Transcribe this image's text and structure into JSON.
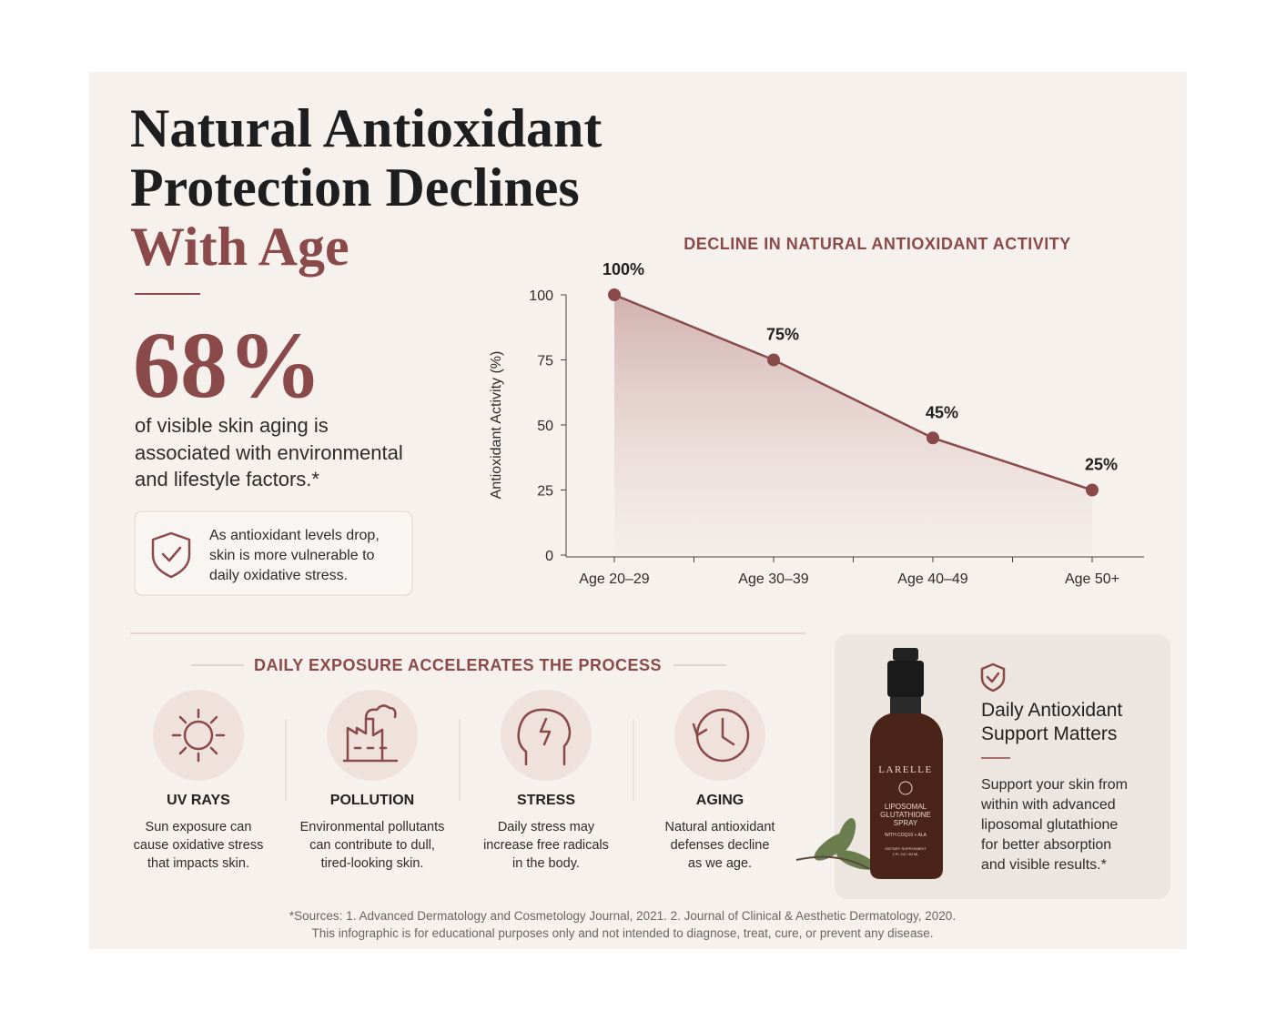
{
  "header": {
    "title_lines": [
      "Natural Antioxidant",
      "Protection Declines"
    ],
    "title_accent": "With Age"
  },
  "stat": {
    "value": "68%",
    "lines": [
      "of visible skin aging is",
      "associated with environmental",
      "and lifestyle factors.*"
    ]
  },
  "callout": {
    "lines": [
      "As antioxidant levels drop,",
      "skin is more vulnerable to",
      "daily oxidative stress."
    ]
  },
  "chart_data": {
    "type": "line",
    "title": "DECLINE IN NATURAL ANTIOXIDANT ACTIVITY",
    "y_label": "Antioxidant Activity (%)",
    "categories": [
      "Age 20–29",
      "Age 30–39",
      "Age 40–49",
      "Age 50+"
    ],
    "values": [
      100,
      75,
      45,
      25
    ],
    "value_labels": [
      "100%",
      "75%",
      "45%",
      "25%"
    ],
    "color": "#8b4a4a",
    "ylim": [
      0,
      100
    ],
    "yticks": [
      0,
      25,
      50,
      75,
      100
    ]
  },
  "exposure": {
    "title": "DAILY EXPOSURE ACCELERATES THE PROCESS",
    "items": [
      {
        "title": "UV RAYS",
        "lines": [
          "Sun exposure can",
          "cause oxidative stress",
          "that impacts skin."
        ]
      },
      {
        "title": "POLLUTION",
        "lines": [
          "Environmental pollutants",
          "can contribute to dull,",
          "tired-looking skin."
        ]
      },
      {
        "title": "STRESS",
        "lines": [
          "Daily stress may",
          "increase free radicals",
          "in the body."
        ]
      },
      {
        "title": "AGING",
        "lines": [
          "Natural antioxidant",
          "defenses decline",
          "as we age."
        ]
      }
    ]
  },
  "product": {
    "brand": "LARELLE",
    "label_lines": [
      "LIPOSOMAL",
      "GLUTATHIONE",
      "SPRAY"
    ],
    "sub": "WITH COQ10 + ALA",
    "small_lines": [
      "DIETARY SUPPLEMENT",
      "2 FL OZ / 60 ML"
    ]
  },
  "support": {
    "title_lines": [
      "Daily Antioxidant",
      "Support Matters"
    ],
    "lines": [
      "Support your skin from",
      "within with advanced",
      "liposomal glutathione",
      "for better absorption",
      "and visible results.*"
    ]
  },
  "footer": {
    "lines": [
      "*Sources: 1. Advanced Dermatology and Cosmetology Journal, 2021. 2. Journal of Clinical & Aesthetic Dermatology, 2020.",
      "This infographic is for educational purposes only and not intended to diagnose, treat, cure, or prevent any disease."
    ]
  }
}
